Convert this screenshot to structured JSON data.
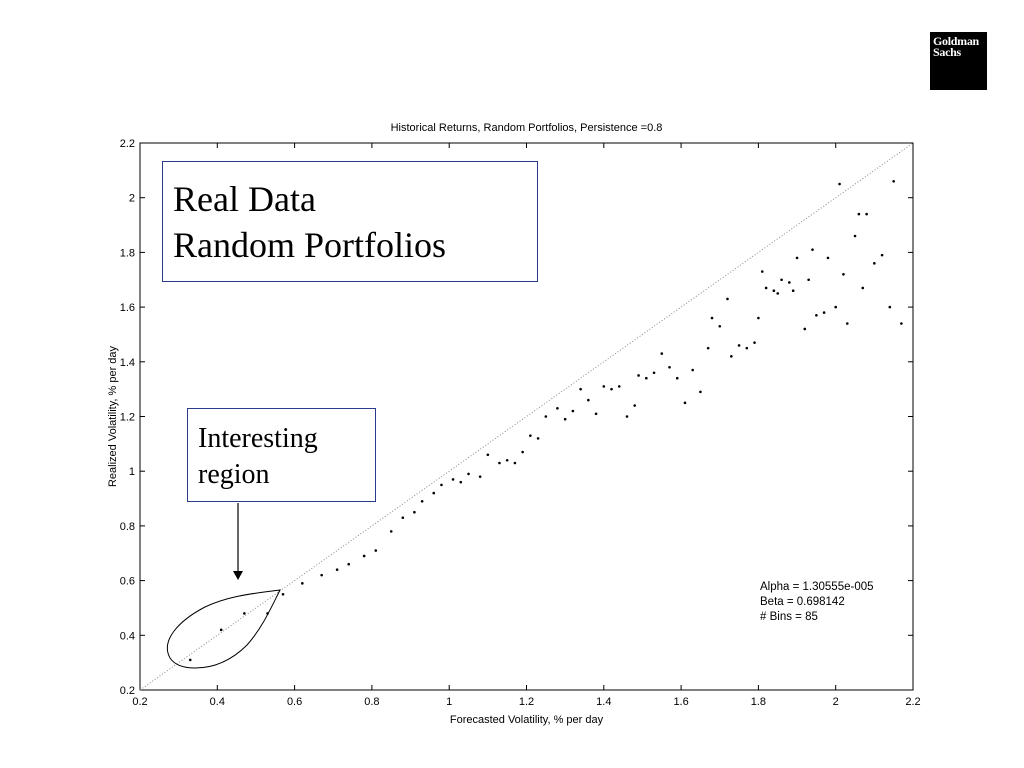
{
  "logo": {
    "line1": "Goldman",
    "line2": "Sachs"
  },
  "annotation_real": {
    "line1": "Real Data",
    "line2": "Random Portfolios"
  },
  "annotation_region": {
    "line1": "Interesting",
    "line2": "region"
  },
  "stats": {
    "alpha": "Alpha = 1.30555e-005",
    "beta": "Beta = 0.698142",
    "bins": "# Bins = 85"
  },
  "chart_data": {
    "type": "scatter",
    "title": "Historical Returns, Random Portfolios, Persistence =0.8",
    "xlabel": "Forecasted Volatility, % per day",
    "ylabel": "Realized Volatility, % per day",
    "xlim": [
      0.2,
      2.2
    ],
    "ylim": [
      0.2,
      2.2
    ],
    "xticks": [
      "0.2",
      "0.4",
      "0.6",
      "0.8",
      "1",
      "1.2",
      "1.4",
      "1.6",
      "1.8",
      "2",
      "2.2"
    ],
    "yticks": [
      "0.2",
      "0.4",
      "0.6",
      "0.8",
      "1",
      "1.2",
      "1.4",
      "1.6",
      "1.8",
      "2",
      "2.2"
    ],
    "grid": false,
    "reference_line": "y = x (dotted)",
    "series": [
      {
        "x": [
          0.33,
          0.41,
          0.47,
          0.53,
          0.57,
          0.62,
          0.67,
          0.71,
          0.74,
          0.78,
          0.81,
          0.85,
          0.88,
          0.91,
          0.93,
          0.96,
          0.98,
          1.01,
          1.03,
          1.05,
          1.08,
          1.1,
          1.13,
          1.15,
          1.17,
          1.19,
          1.21,
          1.23,
          1.25,
          1.28,
          1.3,
          1.32,
          1.34,
          1.36,
          1.38,
          1.4,
          1.42,
          1.44,
          1.46,
          1.48,
          1.49,
          1.51,
          1.53,
          1.55,
          1.57,
          1.59,
          1.61,
          1.63,
          1.65,
          1.67,
          1.68,
          1.7,
          1.72,
          1.73,
          1.75,
          1.77,
          1.79,
          1.8,
          1.81,
          1.82,
          1.84,
          1.85,
          1.86,
          1.88,
          1.89,
          1.9,
          1.92,
          1.93,
          1.94,
          1.95,
          1.97,
          1.98,
          2.0,
          2.01,
          2.02,
          2.03,
          2.05,
          2.06,
          2.07,
          2.08,
          2.1,
          2.12,
          2.14,
          2.15,
          2.17
        ],
        "y": [
          0.31,
          0.42,
          0.48,
          0.48,
          0.55,
          0.59,
          0.62,
          0.64,
          0.66,
          0.69,
          0.71,
          0.78,
          0.83,
          0.85,
          0.89,
          0.92,
          0.95,
          0.97,
          0.96,
          0.99,
          0.98,
          1.06,
          1.03,
          1.04,
          1.03,
          1.07,
          1.13,
          1.12,
          1.2,
          1.23,
          1.19,
          1.22,
          1.3,
          1.26,
          1.21,
          1.31,
          1.3,
          1.31,
          1.2,
          1.24,
          1.35,
          1.34,
          1.36,
          1.43,
          1.38,
          1.34,
          1.25,
          1.37,
          1.29,
          1.45,
          1.56,
          1.53,
          1.63,
          1.42,
          1.46,
          1.45,
          1.47,
          1.56,
          1.73,
          1.67,
          1.66,
          1.65,
          1.7,
          1.69,
          1.66,
          1.78,
          1.52,
          1.7,
          1.81,
          1.57,
          1.58,
          1.78,
          1.6,
          2.05,
          1.72,
          1.54,
          1.86,
          1.94,
          1.67,
          1.94,
          1.76,
          1.79,
          1.6,
          2.06,
          1.54
        ]
      }
    ]
  }
}
